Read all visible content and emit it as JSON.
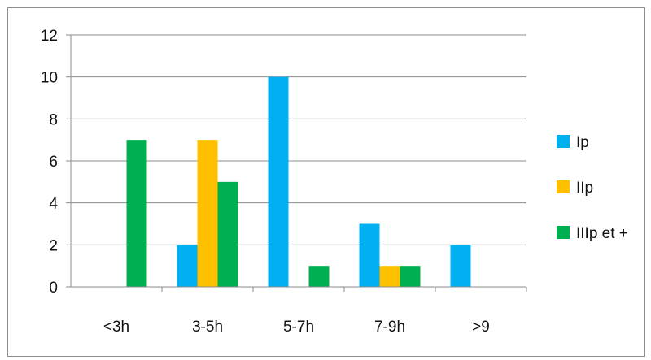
{
  "chart_data": {
    "type": "bar",
    "title": "",
    "xlabel": "",
    "ylabel": "",
    "categories": [
      "<3h",
      "3-5h",
      "5-7h",
      "7-9h",
      ">9"
    ],
    "ylim": [
      0,
      12
    ],
    "yticks": [
      "0",
      "2",
      "4",
      "6",
      "8",
      "10",
      "12"
    ],
    "grid": true,
    "legend_position": "right",
    "series": [
      {
        "name": "Ip",
        "color": "#00B0F0",
        "values": [
          0,
          2,
          10,
          3,
          2
        ]
      },
      {
        "name": "IIp",
        "color": "#FFC000",
        "values": [
          0,
          7,
          0,
          1,
          0
        ]
      },
      {
        "name": "IIIp et +",
        "color": "#00B050",
        "values": [
          7,
          5,
          1,
          1,
          0
        ]
      }
    ]
  }
}
